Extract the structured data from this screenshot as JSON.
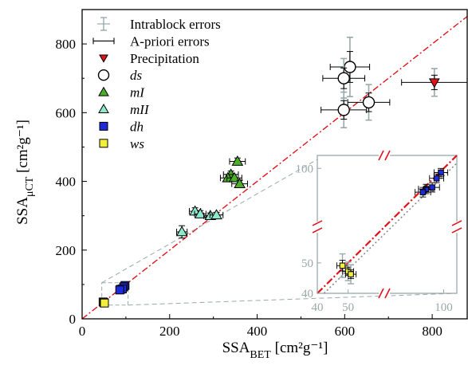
{
  "chart_data": {
    "type": "scatter",
    "xlabel": "SSA",
    "xlabel_sub": "BET",
    "xlabel_unit": " [cm²g⁻¹]",
    "ylabel": "SSA",
    "ylabel_sub": "μCT",
    "ylabel_unit": " [cm²g⁻¹]",
    "xlim": [
      0,
      880
    ],
    "ylim": [
      0,
      900
    ],
    "xticks": [
      "0",
      "200",
      "400",
      "600",
      "800"
    ],
    "yticks": [
      "0",
      "200",
      "400",
      "600",
      "800"
    ],
    "legend_position": "top-left",
    "legend": [
      {
        "label": "Intrablock errors",
        "symbol": "errbar-gray"
      },
      {
        "label": "A-priori errors",
        "symbol": "errbar-black"
      },
      {
        "label": "Precipitation",
        "symbol": "triangle-down-red"
      },
      {
        "label": "ds",
        "symbol": "circle-white"
      },
      {
        "label": "mI",
        "symbol": "triangle-green"
      },
      {
        "label": "mII",
        "symbol": "triangle-lightgreen"
      },
      {
        "label": "dh",
        "symbol": "square-blue"
      },
      {
        "label": "ws",
        "symbol": "square-yellow"
      }
    ],
    "colors": {
      "precipitation": "#e3121a",
      "ds": "#ffffff",
      "mI": "#4caf2a",
      "mII": "#8ee8cc",
      "dh": "#1c2ad8",
      "ws": "#f2ee3c",
      "intrablock": "#9aa9a9",
      "identity": "#e3121a"
    },
    "reference_line": {
      "style": "dash-dot",
      "slope": 1,
      "intercept": 0
    },
    "series": [
      {
        "name": "Precipitation",
        "points": [
          {
            "x": 805,
            "y": 688,
            "xerr": 75,
            "yerr": 35
          }
        ]
      },
      {
        "name": "ds",
        "points": [
          {
            "x": 612,
            "y": 733,
            "xerr": 45,
            "yerr": 75
          },
          {
            "x": 598,
            "y": 700,
            "xerr": 48,
            "yerr": 50
          },
          {
            "x": 655,
            "y": 630,
            "xerr": 48,
            "yerr": 45
          },
          {
            "x": 598,
            "y": 608,
            "xerr": 52,
            "yerr": 45
          }
        ]
      },
      {
        "name": "mI",
        "points": [
          {
            "x": 355,
            "y": 458,
            "xerr": 18,
            "yerr": 10
          },
          {
            "x": 340,
            "y": 420,
            "xerr": 17,
            "yerr": 10
          },
          {
            "x": 333,
            "y": 410,
            "xerr": 17,
            "yerr": 10
          },
          {
            "x": 348,
            "y": 410,
            "xerr": 17,
            "yerr": 10
          },
          {
            "x": 360,
            "y": 393,
            "xerr": 18,
            "yerr": 10
          }
        ]
      },
      {
        "name": "mII",
        "points": [
          {
            "x": 228,
            "y": 253,
            "xerr": 12,
            "yerr": 18
          },
          {
            "x": 258,
            "y": 313,
            "xerr": 13,
            "yerr": 10
          },
          {
            "x": 270,
            "y": 305,
            "xerr": 13,
            "yerr": 10
          },
          {
            "x": 293,
            "y": 300,
            "xerr": 15,
            "yerr": 8
          },
          {
            "x": 307,
            "y": 302,
            "xerr": 15,
            "yerr": 8
          }
        ]
      },
      {
        "name": "dh",
        "points": [
          {
            "x": 98,
            "y": 97,
            "xerr": 5,
            "yerr": 3
          },
          {
            "x": 95,
            "y": 93,
            "xerr": 5,
            "yerr": 3
          },
          {
            "x": 88,
            "y": 86,
            "xerr": 5,
            "yerr": 3
          },
          {
            "x": 92,
            "y": 87,
            "xerr": 5,
            "yerr": 3
          },
          {
            "x": 86,
            "y": 84,
            "xerr": 5,
            "yerr": 3
          }
        ]
      },
      {
        "name": "ws",
        "points": [
          {
            "x": 48,
            "y": 49,
            "xerr": 2,
            "yerr": 4
          },
          {
            "x": 50,
            "y": 47,
            "xerr": 2,
            "yerr": 3
          },
          {
            "x": 51,
            "y": 46,
            "xerr": 2,
            "yerr": 3
          }
        ]
      }
    ],
    "inset": {
      "scale": "log",
      "xlim": [
        40,
        110
      ],
      "ylim": [
        40,
        110
      ],
      "xticks": [
        {
          "v": 40,
          "label": "40"
        },
        {
          "v": 50,
          "label": "50"
        },
        {
          "v": 100,
          "label": "100"
        }
      ],
      "yticks": [
        {
          "v": 40,
          "label": "40"
        },
        {
          "v": 50,
          "label": "50"
        },
        {
          "v": 100,
          "label": "100"
        }
      ],
      "zoom_box": {
        "xlim": [
          45,
          105
        ],
        "ylim": [
          40,
          105
        ]
      }
    }
  }
}
